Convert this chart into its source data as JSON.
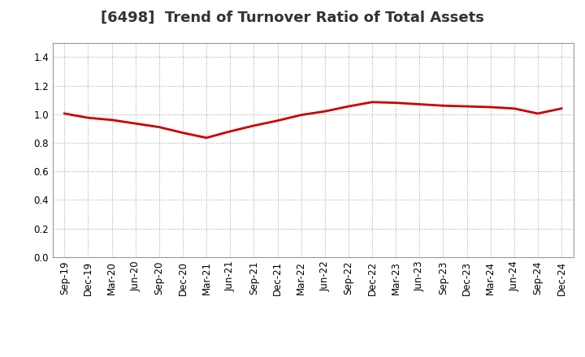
{
  "title": "[6498]  Trend of Turnover Ratio of Total Assets",
  "x_labels": [
    "Sep-19",
    "Dec-19",
    "Mar-20",
    "Jun-20",
    "Sep-20",
    "Dec-20",
    "Mar-21",
    "Jun-21",
    "Sep-21",
    "Dec-21",
    "Mar-22",
    "Jun-22",
    "Sep-22",
    "Dec-22",
    "Mar-23",
    "Jun-23",
    "Sep-23",
    "Dec-23",
    "Mar-24",
    "Jun-24",
    "Sep-24",
    "Dec-24"
  ],
  "values": [
    1.005,
    0.975,
    0.96,
    0.935,
    0.91,
    0.87,
    0.835,
    0.88,
    0.92,
    0.955,
    0.995,
    1.02,
    1.055,
    1.085,
    1.08,
    1.07,
    1.06,
    1.055,
    1.05,
    1.04,
    1.005,
    1.04
  ],
  "line_color": "#cc0000",
  "line_width": 2.0,
  "ylim": [
    0.0,
    1.5
  ],
  "yticks": [
    0.0,
    0.2,
    0.4,
    0.6,
    0.8,
    1.0,
    1.2,
    1.4
  ],
  "grid_color": "#aaaaaa",
  "background_color": "#ffffff",
  "title_fontsize": 13,
  "title_color": "#333333",
  "tick_fontsize": 8.5
}
